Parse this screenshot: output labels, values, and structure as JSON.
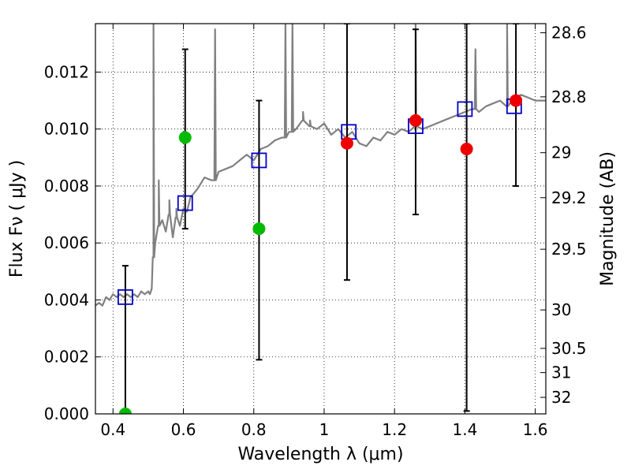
{
  "chart_data": {
    "type": "scatter",
    "xlabel": "Wavelength  λ (μm)",
    "ylabel": "Flux  Fν  ( μJy )",
    "y2label": "Magnitude (AB)",
    "xlim": [
      0.35,
      1.63
    ],
    "ylim": [
      0.0,
      0.0137
    ],
    "xticks": [
      0.4,
      0.6,
      0.8,
      1.0,
      1.2,
      1.4,
      1.6
    ],
    "xtick_labels": [
      "0.4",
      "0.6",
      "0.8",
      "1",
      "1.2",
      "1.4",
      "1.6"
    ],
    "yticks": [
      0.0,
      0.002,
      0.004,
      0.006,
      0.008,
      0.01,
      0.012
    ],
    "ytick_labels": [
      "0.000",
      "0.002",
      "0.004",
      "0.006",
      "0.008",
      "0.010",
      "0.012"
    ],
    "magnitude_ticks": [
      {
        "flux": 0.01338,
        "label": "28.6"
      },
      {
        "flux": 0.01113,
        "label": "28.8"
      },
      {
        "flux": 0.00917,
        "label": "29"
      },
      {
        "flux": 0.00759,
        "label": "29.2"
      },
      {
        "flux": 0.00578,
        "label": "29.5"
      },
      {
        "flux": 0.00365,
        "label": "30"
      },
      {
        "flux": 0.0023,
        "label": "30.5"
      },
      {
        "flux": 0.00145,
        "label": "31"
      },
      {
        "flux": 0.00058,
        "label": "32"
      }
    ],
    "grid": true,
    "colors": {
      "model": "#808080",
      "model_points": "#0000cc",
      "green_points": "#00bb00",
      "red_points": "#ee0000",
      "errorbars": "#000000"
    },
    "model_spectrum": {
      "x": [
        0.35,
        0.36,
        0.37,
        0.38,
        0.39,
        0.4,
        0.41,
        0.42,
        0.43,
        0.44,
        0.45,
        0.46,
        0.47,
        0.48,
        0.49,
        0.5,
        0.505,
        0.51,
        0.515,
        0.52,
        0.53,
        0.54,
        0.55,
        0.56,
        0.57,
        0.58,
        0.59,
        0.6,
        0.61,
        0.62,
        0.64,
        0.66,
        0.68,
        0.7,
        0.72,
        0.74,
        0.76,
        0.78,
        0.8,
        0.82,
        0.84,
        0.86,
        0.88,
        0.9,
        0.92,
        0.94,
        0.96,
        0.98,
        1.0,
        1.02,
        1.04,
        1.06,
        1.08,
        1.1,
        1.12,
        1.14,
        1.16,
        1.18,
        1.2,
        1.22,
        1.24,
        1.26,
        1.28,
        1.3,
        1.32,
        1.34,
        1.36,
        1.38,
        1.4,
        1.42,
        1.44,
        1.46,
        1.48,
        1.5,
        1.52,
        1.54,
        1.56,
        1.58,
        1.6,
        1.63
      ],
      "y": [
        0.0038,
        0.0039,
        0.0038,
        0.0041,
        0.004,
        0.0042,
        0.0041,
        0.0042,
        0.0041,
        0.0042,
        0.0041,
        0.0042,
        0.0041,
        0.0043,
        0.0042,
        0.0043,
        0.0042,
        0.0044,
        0.0055,
        0.006,
        0.0066,
        0.0068,
        0.0064,
        0.007,
        0.0062,
        0.0069,
        0.0066,
        0.0072,
        0.0071,
        0.0076,
        0.0079,
        0.0083,
        0.0082,
        0.0085,
        0.0086,
        0.0087,
        0.0089,
        0.0091,
        0.0089,
        0.0093,
        0.0094,
        0.0096,
        0.0097,
        0.0099,
        0.01,
        0.0103,
        0.0101,
        0.01,
        0.0102,
        0.0098,
        0.01,
        0.0097,
        0.0099,
        0.0095,
        0.0094,
        0.0097,
        0.0096,
        0.0099,
        0.0098,
        0.01,
        0.0099,
        0.0101,
        0.01,
        0.0101,
        0.0102,
        0.0103,
        0.0104,
        0.0105,
        0.0106,
        0.0107,
        0.0106,
        0.0108,
        0.0109,
        0.011,
        0.0108,
        0.0111,
        0.0112,
        0.0111,
        0.011,
        0.011
      ]
    },
    "model_spikes": [
      {
        "x": 0.515,
        "peak": 0.0137
      },
      {
        "x": 0.53,
        "peak": 0.0082
      },
      {
        "x": 0.56,
        "peak": 0.0075
      },
      {
        "x": 0.58,
        "peak": 0.0072
      },
      {
        "x": 0.69,
        "peak": 0.0135
      },
      {
        "x": 0.89,
        "peak": 0.0137
      },
      {
        "x": 0.91,
        "peak": 0.0137
      },
      {
        "x": 0.94,
        "peak": 0.0106
      },
      {
        "x": 0.96,
        "peak": 0.0103
      },
      {
        "x": 1.26,
        "peak": 0.0137
      },
      {
        "x": 1.43,
        "peak": 0.0128
      },
      {
        "x": 1.52,
        "peak": 0.0137
      }
    ],
    "model_points": [
      {
        "x": 0.435,
        "y": 0.0041
      },
      {
        "x": 0.605,
        "y": 0.0074
      },
      {
        "x": 0.815,
        "y": 0.0089
      },
      {
        "x": 1.07,
        "y": 0.0099
      },
      {
        "x": 1.26,
        "y": 0.0101
      },
      {
        "x": 1.4,
        "y": 0.0107
      },
      {
        "x": 1.54,
        "y": 0.0108
      }
    ],
    "green_points": [
      {
        "x": 0.435,
        "y": 0.0
      },
      {
        "x": 0.605,
        "y": 0.0097
      },
      {
        "x": 0.815,
        "y": 0.0065
      }
    ],
    "red_points": [
      {
        "x": 1.065,
        "y": 0.0095
      },
      {
        "x": 1.26,
        "y": 0.0103
      },
      {
        "x": 1.405,
        "y": 0.0093
      },
      {
        "x": 1.545,
        "y": 0.011
      }
    ],
    "errorbars": [
      {
        "x": 0.435,
        "low": 0.0,
        "high": 0.0052
      },
      {
        "x": 0.605,
        "low": 0.0065,
        "high": 0.0128
      },
      {
        "x": 0.815,
        "low": 0.0019,
        "high": 0.011
      },
      {
        "x": 1.065,
        "low": 0.0047,
        "high": 0.0137
      },
      {
        "x": 1.26,
        "low": 0.007,
        "high": 0.0135
      },
      {
        "x": 1.405,
        "low": 0.0001,
        "high": 0.0137
      },
      {
        "x": 1.545,
        "low": 0.008,
        "high": 0.0137
      }
    ]
  }
}
